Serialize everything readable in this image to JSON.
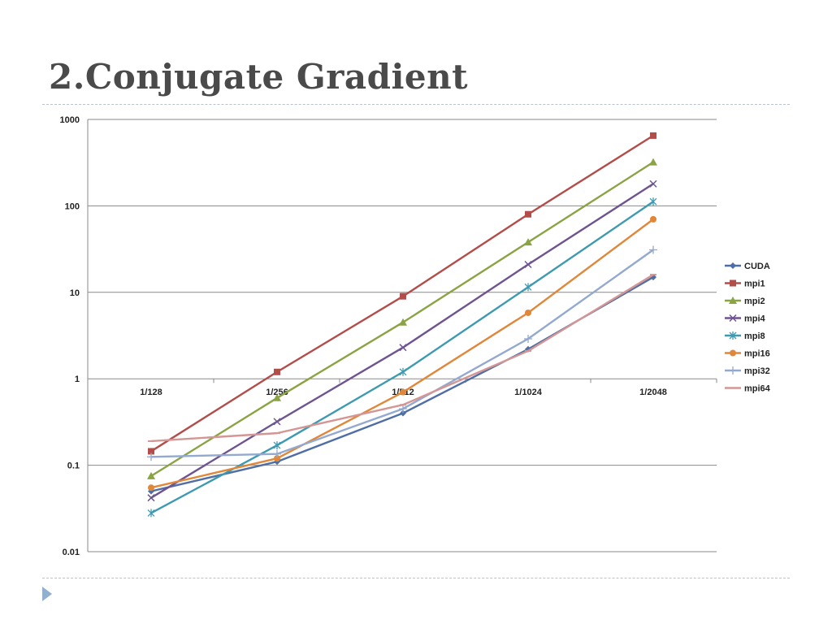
{
  "slide": {
    "title": "2.Conjugate Gradient"
  },
  "chart_data": {
    "type": "line",
    "x_scale": "categorical",
    "y_scale": "log",
    "categories": [
      "1/128",
      "1/256",
      "1/512",
      "1/1024",
      "1/2048"
    ],
    "ylim": [
      0.01,
      1000
    ],
    "y_ticks": [
      "1000",
      "100",
      "10",
      "1",
      "0.1",
      "0.01"
    ],
    "y_tick_values": [
      1000,
      100,
      10,
      1,
      0.1,
      0.01
    ],
    "grid": "horizontal",
    "legend_position": "right",
    "series": [
      {
        "name": "CUDA",
        "color": "#4f6ea5",
        "marker": "diamond",
        "values": [
          0.05,
          0.11,
          0.4,
          2.2,
          15
        ]
      },
      {
        "name": "mpi1",
        "color": "#b34d4a",
        "marker": "square",
        "values": [
          0.145,
          1.2,
          9,
          80,
          650
        ]
      },
      {
        "name": "mpi2",
        "color": "#8aa444",
        "marker": "triangle",
        "values": [
          0.075,
          0.6,
          4.5,
          38,
          320
        ]
      },
      {
        "name": "mpi4",
        "color": "#6e5490",
        "marker": "x",
        "values": [
          0.042,
          0.32,
          2.3,
          21,
          180
        ]
      },
      {
        "name": "mpi8",
        "color": "#3e9ab0",
        "marker": "star",
        "values": [
          0.028,
          0.17,
          1.2,
          11.5,
          112
        ]
      },
      {
        "name": "mpi16",
        "color": "#e0873a",
        "marker": "circle",
        "values": [
          0.055,
          0.12,
          0.7,
          5.8,
          70
        ]
      },
      {
        "name": "mpi32",
        "color": "#93a9cf",
        "marker": "plus",
        "values": [
          0.125,
          0.135,
          0.45,
          2.9,
          31
        ]
      },
      {
        "name": "mpi64",
        "color": "#d49694",
        "marker": "dash",
        "values": [
          0.19,
          0.235,
          0.5,
          2.1,
          16
        ]
      }
    ]
  }
}
